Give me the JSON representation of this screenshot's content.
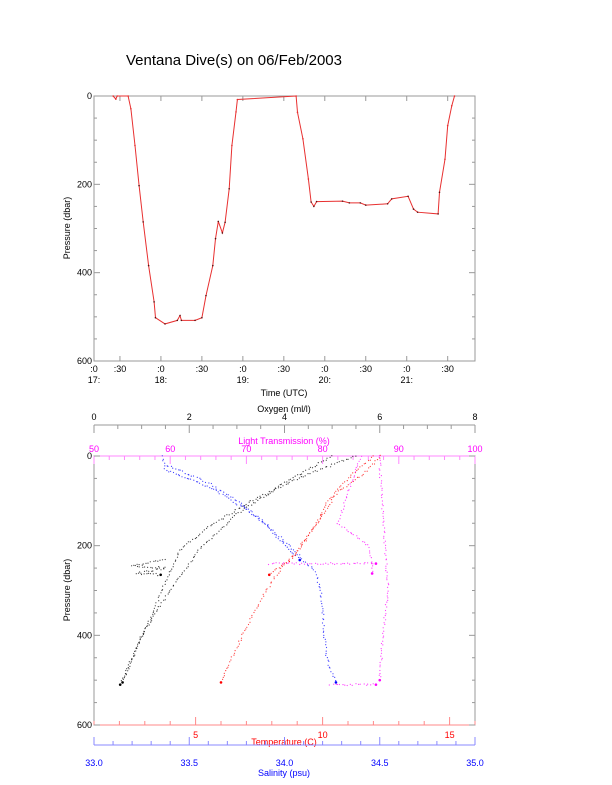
{
  "chart_data": [
    {
      "type": "line",
      "title": "Ventana Dive(s) on 06/Feb/2003",
      "xlabel": "Time (UTC)",
      "ylabel": "Pressure (dbar)",
      "xlim": [
        "17:11",
        "21:50"
      ],
      "ylim": [
        600,
        0
      ],
      "y_reversed": true,
      "grid": false,
      "line_color": "#e83030",
      "marker_color": "#5a1010",
      "x_ticks": [
        {
          "time": "17:11",
          "top": ":0",
          "bottom": "17:"
        },
        {
          "time": "17:30",
          "top": ":30",
          "bottom": ""
        },
        {
          "time": "18:00",
          "top": ":0",
          "bottom": "18:"
        },
        {
          "time": "18:30",
          "top": ":30",
          "bottom": ""
        },
        {
          "time": "19:00",
          "top": ":0",
          "bottom": "19:"
        },
        {
          "time": "19:30",
          "top": ":30",
          "bottom": ""
        },
        {
          "time": "20:00",
          "top": ":0",
          "bottom": "20:"
        },
        {
          "time": "20:30",
          "top": ":30",
          "bottom": ""
        },
        {
          "time": "21:00",
          "top": ":0",
          "bottom": "21:"
        },
        {
          "time": "21:30",
          "top": ":30",
          "bottom": ""
        }
      ],
      "y_ticks": [
        "0",
        "200",
        "400",
        "600"
      ],
      "y_tick_values": [
        0,
        200,
        400,
        600
      ],
      "points": [
        [
          "17:25",
          0
        ],
        [
          "17:27",
          7
        ],
        [
          "17:28",
          0
        ],
        [
          "17:36",
          0
        ],
        [
          "17:38",
          29
        ],
        [
          "17:41",
          112
        ],
        [
          "17:44",
          203
        ],
        [
          "17:47",
          285
        ],
        [
          "17:51",
          384
        ],
        [
          "17:55",
          466
        ],
        [
          "17:56",
          502
        ],
        [
          "18:03",
          516
        ],
        [
          "18:12",
          508
        ],
        [
          "18:14",
          497
        ],
        [
          "18:15",
          508
        ],
        [
          "18:25",
          508
        ],
        [
          "18:30",
          502
        ],
        [
          "18:33",
          452
        ],
        [
          "18:38",
          384
        ],
        [
          "18:40",
          323
        ],
        [
          "18:42",
          284
        ],
        [
          "18:45",
          310
        ],
        [
          "18:47",
          286
        ],
        [
          "18:50",
          210
        ],
        [
          "18:52",
          112
        ],
        [
          "18:55",
          36
        ],
        [
          "18:56",
          8
        ],
        [
          "19:39",
          0
        ],
        [
          "19:40",
          37
        ],
        [
          "19:44",
          97
        ],
        [
          "19:48",
          188
        ],
        [
          "19:50",
          240
        ],
        [
          "19:52",
          250
        ],
        [
          "19:54",
          239
        ],
        [
          "20:13",
          238
        ],
        [
          "20:18",
          242
        ],
        [
          "20:26",
          242
        ],
        [
          "20:30",
          247
        ],
        [
          "20:46",
          244
        ],
        [
          "20:49",
          233
        ],
        [
          "21:01",
          227
        ],
        [
          "21:05",
          256
        ],
        [
          "21:08",
          263
        ],
        [
          "21:23",
          267
        ],
        [
          "21:24",
          218
        ],
        [
          "21:28",
          143
        ],
        [
          "21:30",
          67
        ],
        [
          "21:33",
          22
        ],
        [
          "21:35",
          0
        ]
      ]
    },
    {
      "type": "scatter",
      "ylabel": "Pressure (dbar)",
      "ylim": [
        600,
        0
      ],
      "y_reversed": true,
      "y_ticks": [
        "0",
        "200",
        "400",
        "600"
      ],
      "y_tick_values": [
        0,
        200,
        400,
        600
      ],
      "axes": {
        "oxygen": {
          "label": "Oxygen (ml/l)",
          "lim": [
            0,
            8
          ],
          "ticks": [
            "0",
            "2",
            "4",
            "6",
            "8"
          ],
          "tick_values": [
            0,
            2,
            4,
            6,
            8
          ],
          "color": "#000000"
        },
        "light": {
          "label": "Light Transmission (%)",
          "lim": [
            50,
            100
          ],
          "ticks": [
            "50",
            "60",
            "70",
            "80",
            "90",
            "100"
          ],
          "tick_values": [
            50,
            60,
            70,
            80,
            90,
            100
          ],
          "color": "#ff00ff"
        },
        "temperature": {
          "label": "Temperature (C)",
          "lim": [
            1,
            16
          ],
          "ticks": [
            "5",
            "10",
            "15"
          ],
          "tick_values": [
            5,
            10,
            15
          ],
          "color": "#ff0000"
        },
        "salinity": {
          "label": "Salinity (psu)",
          "lim": [
            33.0,
            35.0
          ],
          "ticks": [
            "33.0",
            "33.5",
            "34.0",
            "34.5",
            "35.0"
          ],
          "tick_values": [
            33.0,
            33.5,
            34.0,
            34.5,
            35.0
          ],
          "color": "#0000ff"
        }
      },
      "series": [
        {
          "axis": "oxygen",
          "color": "#000000",
          "tracks": [
            [
              [
                5.5,
                0
              ],
              [
                4.5,
                40
              ],
              [
                3.3,
                100
              ],
              [
                2.4,
                160
              ],
              [
                1.8,
                210
              ],
              [
                1.5,
                280
              ],
              [
                1.2,
                360
              ],
              [
                0.8,
                450
              ],
              [
                0.55,
                510
              ]
            ],
            [
              [
                5.0,
                0
              ],
              [
                4.0,
                60
              ],
              [
                3.0,
                130
              ],
              [
                2.2,
                210
              ],
              [
                1.6,
                300
              ],
              [
                1.0,
                400
              ],
              [
                0.6,
                505
              ]
            ],
            [
              [
                1.5,
                232
              ],
              [
                0.8,
                245
              ],
              [
                1.5,
                250
              ],
              [
                0.9,
                262
              ],
              [
                1.4,
                265
              ]
            ]
          ]
        },
        {
          "axis": "salinity",
          "color": "#0000ff",
          "tracks": [
            [
              [
                33.36,
                0
              ],
              [
                33.37,
                30
              ],
              [
                33.5,
                50
              ],
              [
                33.65,
                80
              ],
              [
                33.8,
                120
              ],
              [
                33.95,
                170
              ],
              [
                34.05,
                210
              ],
              [
                34.1,
                235
              ],
              [
                34.15,
                250
              ],
              [
                34.17,
                270
              ],
              [
                34.19,
                300
              ],
              [
                34.2,
                350
              ],
              [
                34.21,
                400
              ],
              [
                34.22,
                450
              ],
              [
                34.27,
                505
              ]
            ],
            [
              [
                33.38,
                20
              ],
              [
                33.6,
                60
              ],
              [
                33.75,
                100
              ],
              [
                33.9,
                150
              ],
              [
                34.0,
                200
              ],
              [
                34.08,
                232
              ]
            ]
          ]
        },
        {
          "axis": "temperature",
          "color": "#ff0000",
          "tracks": [
            [
              [
                12.3,
                0
              ],
              [
                11.6,
                40
              ],
              [
                10.6,
                80
              ],
              [
                10.0,
                130
              ],
              [
                9.4,
                180
              ],
              [
                8.8,
                230
              ],
              [
                8.3,
                255
              ],
              [
                7.9,
                290
              ],
              [
                7.2,
                360
              ],
              [
                6.6,
                430
              ],
              [
                6.0,
                505
              ]
            ],
            [
              [
                12.0,
                0
              ],
              [
                11.0,
                50
              ],
              [
                10.2,
                100
              ],
              [
                9.8,
                150
              ],
              [
                9.0,
                215
              ],
              [
                8.5,
                240
              ],
              [
                7.9,
                265
              ]
            ]
          ]
        },
        {
          "axis": "light",
          "color": "#ff00ff",
          "tracks": [
            [
              [
                87.5,
                0
              ],
              [
                87.6,
                50
              ],
              [
                87.8,
                100
              ],
              [
                88.2,
                200
              ],
              [
                88.6,
                300
              ],
              [
                87.9,
                400
              ],
              [
                87.5,
                500
              ]
            ],
            [
              [
                85.0,
                0
              ],
              [
                83.0,
                100
              ],
              [
                82.0,
                150
              ],
              [
                86.0,
                200
              ],
              [
                86.5,
                240
              ],
              [
                86.5,
                262
              ]
            ],
            [
              [
                73.0,
                240
              ],
              [
                80.0,
                240
              ],
              [
                87.0,
                240
              ]
            ],
            [
              [
                81.0,
                510
              ],
              [
                84.0,
                510
              ],
              [
                87.0,
                510
              ]
            ]
          ]
        }
      ]
    }
  ]
}
